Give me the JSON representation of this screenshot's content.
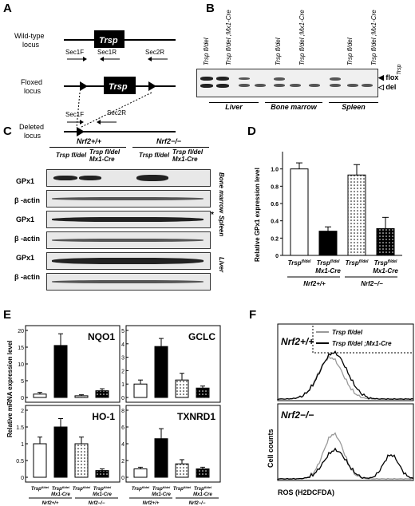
{
  "panels": {
    "A": {
      "label": "A",
      "gene": "Trsp",
      "loci": [
        "Wild-type\nlocus",
        "Floxed\nlocus",
        "Deleted\nlocus"
      ],
      "primers": [
        "Sec1F",
        "Sec1R",
        "Sec2R",
        "Sec1F",
        "Sec2R"
      ]
    },
    "B": {
      "label": "B",
      "lanes": [
        "Trsp fl/del",
        "Trsp fl/del ;Mx1-Cre",
        "Trsp fl/del",
        "Trsp fl/del ;Mx1-Cre",
        "Trsp fl/del",
        "Trsp fl/del ;Mx1-Cre"
      ],
      "tissues": [
        "Liver",
        "Bone marrow",
        "Spleen"
      ],
      "markers": [
        "flox",
        "del"
      ]
    },
    "C": {
      "label": "C",
      "genotypes": [
        "Nrf2+/+",
        "Nrf2−/−"
      ],
      "lanes": [
        "Trsp fl/del",
        "Trsp fl/del Mx1-Cre",
        "Trsp fl/del",
        "Trsp fl/del Mx1-Cre"
      ],
      "rows": [
        "GPx1",
        "β -actin",
        "GPx1",
        "β -actin",
        "GPx1",
        "β -actin"
      ],
      "tissues": [
        "Bone marrow",
        "Spleen",
        "Liver"
      ],
      "asterisk": "*"
    },
    "D": {
      "label": "D",
      "ylabel": "Relative GPx1 expression level",
      "xlabels": [
        "Trsp fl/del",
        "Trsp fl/del Mx1-Cre",
        "Trsp fl/del",
        "Trsp fl/del Mx1-Cre"
      ],
      "groups": [
        "Nrf2+/+",
        "Nrf2−/−"
      ]
    },
    "E": {
      "label": "E",
      "ylabel": "Relative mRNA expression level",
      "subplots": [
        "NQO1",
        "GCLC",
        "HO-1",
        "TXNRD1"
      ],
      "groups": [
        "Nrf2+/+",
        "Nrf2−/−"
      ]
    },
    "F": {
      "label": "F",
      "legend": [
        "Trsp fl/del",
        "Trsp fl/del ;Mx1-Cre"
      ],
      "top": "Nrf2+/+",
      "bottom": "Nrf2−/−",
      "ylabel": "Cell counts",
      "xlabel": "ROS (H2DCFDA)"
    }
  },
  "chart_data": [
    {
      "type": "bar",
      "panel": "D",
      "ylabel": "Relative GPx1 expression level",
      "categories": [
        "Trsp fl/del",
        "Trsp fl/del Mx1-Cre",
        "Trsp fl/del",
        "Trsp fl/del Mx1-Cre"
      ],
      "values": [
        1.0,
        0.28,
        0.93,
        0.31
      ],
      "errors": [
        0.07,
        0.05,
        0.12,
        0.13
      ],
      "ylim": [
        0,
        1.2
      ],
      "yticks": [
        "0",
        "0.2",
        "0.4",
        "0.6",
        "0.8",
        "1.0"
      ],
      "fills": [
        "#ffffff",
        "#000000",
        "dots-light",
        "dots-dark"
      ]
    },
    {
      "type": "bar",
      "panel": "E",
      "title": "NQO1",
      "values": [
        1.0,
        15.5,
        0.5,
        2.0
      ],
      "errors": [
        0.5,
        3.5,
        0.3,
        0.6
      ],
      "ylim": [
        0,
        20
      ],
      "yticks": [
        "0",
        "5",
        "10",
        "15",
        "20"
      ]
    },
    {
      "type": "bar",
      "panel": "E",
      "title": "GCLC",
      "values": [
        1.0,
        3.8,
        1.3,
        0.7
      ],
      "errors": [
        0.3,
        0.6,
        0.5,
        0.15
      ],
      "ylim": [
        0,
        5
      ],
      "yticks": [
        "0",
        "1",
        "2",
        "3",
        "4",
        "5"
      ]
    },
    {
      "type": "bar",
      "panel": "E",
      "title": "HO-1",
      "values": [
        1.0,
        1.5,
        1.0,
        0.2
      ],
      "errors": [
        0.2,
        0.25,
        0.2,
        0.05
      ],
      "ylim": [
        0,
        2
      ],
      "yticks": [
        "0",
        "0.5",
        "1",
        "1.5",
        "2"
      ]
    },
    {
      "type": "bar",
      "panel": "E",
      "title": "TXNRD1",
      "values": [
        1.0,
        4.6,
        1.6,
        1.0
      ],
      "errors": [
        0.2,
        1.2,
        0.5,
        0.2
      ],
      "ylim": [
        0,
        8
      ],
      "yticks": [
        "0",
        "2",
        "4",
        "6",
        "8"
      ]
    }
  ]
}
